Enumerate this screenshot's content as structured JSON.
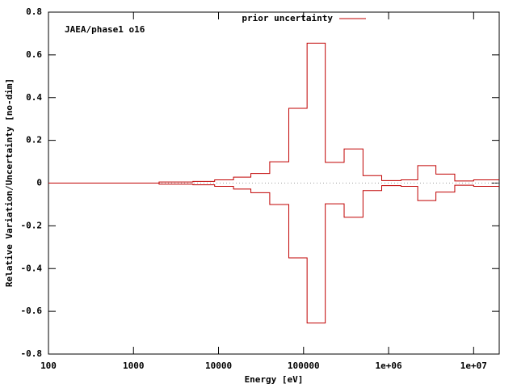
{
  "chart_data": {
    "type": "step",
    "annotation": "JAEA/phase1 o16",
    "xlabel": "Energy [eV]",
    "ylabel": "Relative Variation/Uncertainty [no-dim]",
    "log_x": true,
    "zeroaxis": true,
    "legend": "top",
    "xlim": [
      100,
      20000000
    ],
    "ylim": [
      -0.8,
      0.8
    ],
    "xticks": [
      100,
      1000,
      10000,
      100000,
      {
        "value": 1000000,
        "label": "1e+06"
      },
      {
        "value": 10000000,
        "label": "1e+07"
      }
    ],
    "yticks": [
      -0.8,
      -0.6,
      -0.4,
      -0.2,
      0,
      0.2,
      0.4,
      0.6,
      0.8
    ],
    "series": [
      {
        "name": "prior uncertainty",
        "color": "#c00000",
        "bins": [
          100,
          2000,
          5000,
          9000,
          15000,
          24000,
          40000,
          67000,
          110000,
          180000,
          300000,
          500000,
          830000,
          1400000,
          2200000,
          3600000,
          6000000,
          10000000,
          20000000
        ],
        "upper": [
          0,
          0.005,
          0.008,
          0.015,
          0.028,
          0.045,
          0.1,
          0.35,
          0.655,
          0.097,
          0.16,
          0.035,
          0.012,
          0.015,
          0.082,
          0.042,
          0.01,
          0.015
        ],
        "lower": [
          0,
          -0.005,
          -0.008,
          -0.015,
          -0.028,
          -0.045,
          -0.1,
          -0.35,
          -0.655,
          -0.097,
          -0.16,
          -0.035,
          -0.012,
          -0.015,
          -0.082,
          -0.042,
          -0.01,
          -0.015
        ]
      }
    ]
  }
}
